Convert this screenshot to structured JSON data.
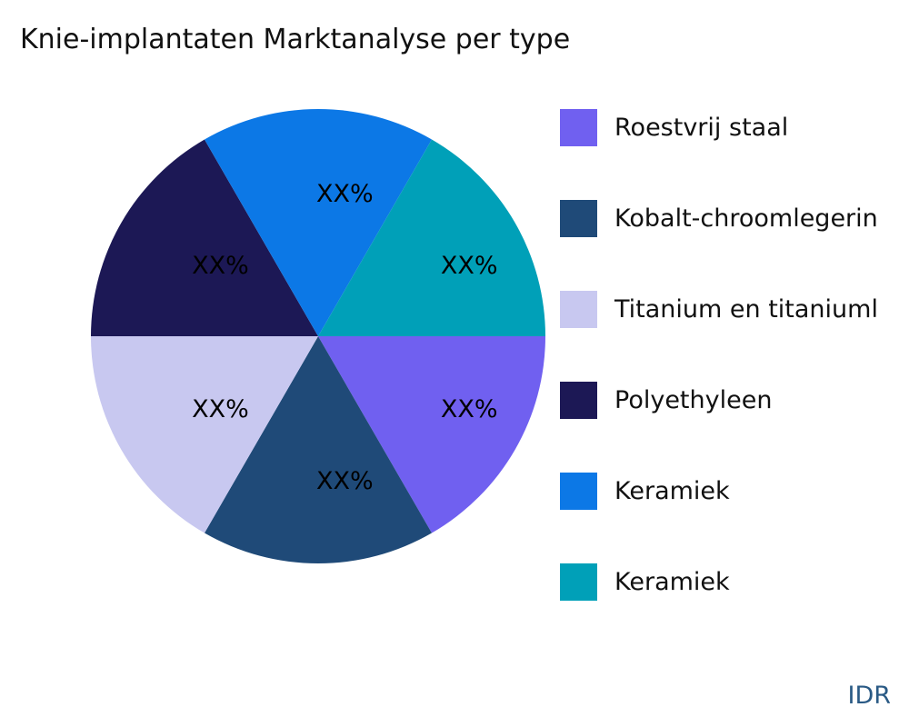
{
  "chart_data": {
    "type": "pie",
    "title": "Knie-implantaten Marktanalyse per type",
    "slices": [
      {
        "label": "Roestvrij staal",
        "value": 1,
        "text": "XX%",
        "color": "#7060f0"
      },
      {
        "label": "Kobalt-chroomlegerin",
        "value": 1,
        "text": "XX%",
        "color": "#1f4a78"
      },
      {
        "label": "Titanium en titaniuml",
        "value": 1,
        "text": "XX%",
        "color": "#c8c8f0"
      },
      {
        "label": "Polyethyleen",
        "value": 1,
        "text": "XX%",
        "color": "#1c1855"
      },
      {
        "label": "Keramiek",
        "value": 1,
        "text": "XX%",
        "color": "#0c78e6"
      },
      {
        "label": "Keramiek",
        "value": 1,
        "text": "XX%",
        "color": "#00a0b8"
      }
    ],
    "legend_position": "right"
  },
  "brand": "IDR"
}
